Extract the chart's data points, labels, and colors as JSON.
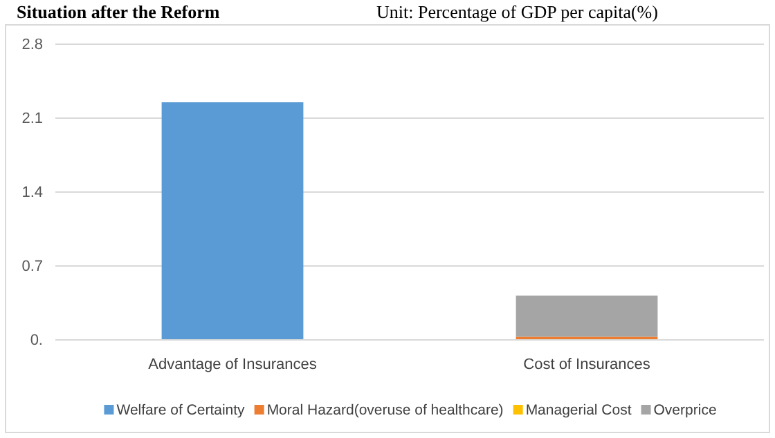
{
  "chart_data": {
    "type": "bar",
    "stacked": true,
    "title": "Situation after the Reform",
    "subtitle": "Unit: Percentage of GDP per capita(%)",
    "categories": [
      "Advantage of Insurances",
      "Cost of Insurances"
    ],
    "series": [
      {
        "name": "Welfare of Certainty",
        "color": "#5b9bd5",
        "values": [
          2.25,
          null
        ]
      },
      {
        "name": "Moral Hazard(overuse of healthcare)",
        "color": "#ed7d31",
        "values": [
          null,
          0.03
        ]
      },
      {
        "name": "Managerial Cost",
        "color": "#ffc000",
        "values": [
          null,
          0
        ]
      },
      {
        "name": "Overprice",
        "color": "#a5a5a5",
        "values": [
          null,
          0.39
        ]
      }
    ],
    "ylim": [
      0,
      2.8
    ],
    "yticks": [
      {
        "value": 0,
        "label": "0."
      },
      0.7,
      1.4,
      2.1,
      2.8
    ],
    "grid": "y",
    "legend": "bottom"
  }
}
